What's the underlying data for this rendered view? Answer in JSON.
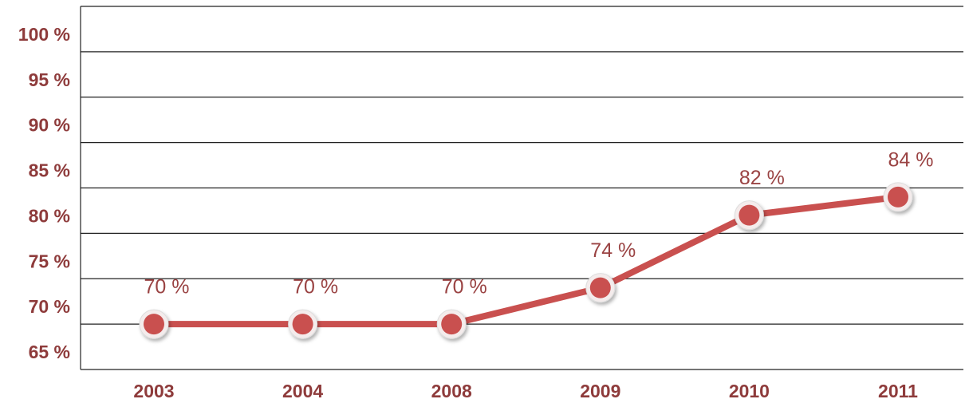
{
  "chart_data": {
    "type": "line",
    "categories": [
      "2003",
      "2004",
      "2008",
      "2009",
      "2010",
      "2011"
    ],
    "series": [
      {
        "color": "#c9504f",
        "values": [
          70,
          70,
          70,
          74,
          82,
          84
        ],
        "value_labels": [
          "70 %",
          "70 %",
          "70 %",
          "74 %",
          "82 %",
          "84 %"
        ]
      }
    ],
    "ylim": [
      65,
      105
    ],
    "yticks": [
      {
        "value": 65,
        "label": "65 %"
      },
      {
        "value": 70,
        "label": "70 %"
      },
      {
        "value": 75,
        "label": "75 %"
      },
      {
        "value": 80,
        "label": "80 %"
      },
      {
        "value": 85,
        "label": "85 %"
      },
      {
        "value": 90,
        "label": "90 %"
      },
      {
        "value": 95,
        "label": "95 %"
      },
      {
        "value": 100,
        "label": "100 %"
      }
    ],
    "grid": true
  }
}
